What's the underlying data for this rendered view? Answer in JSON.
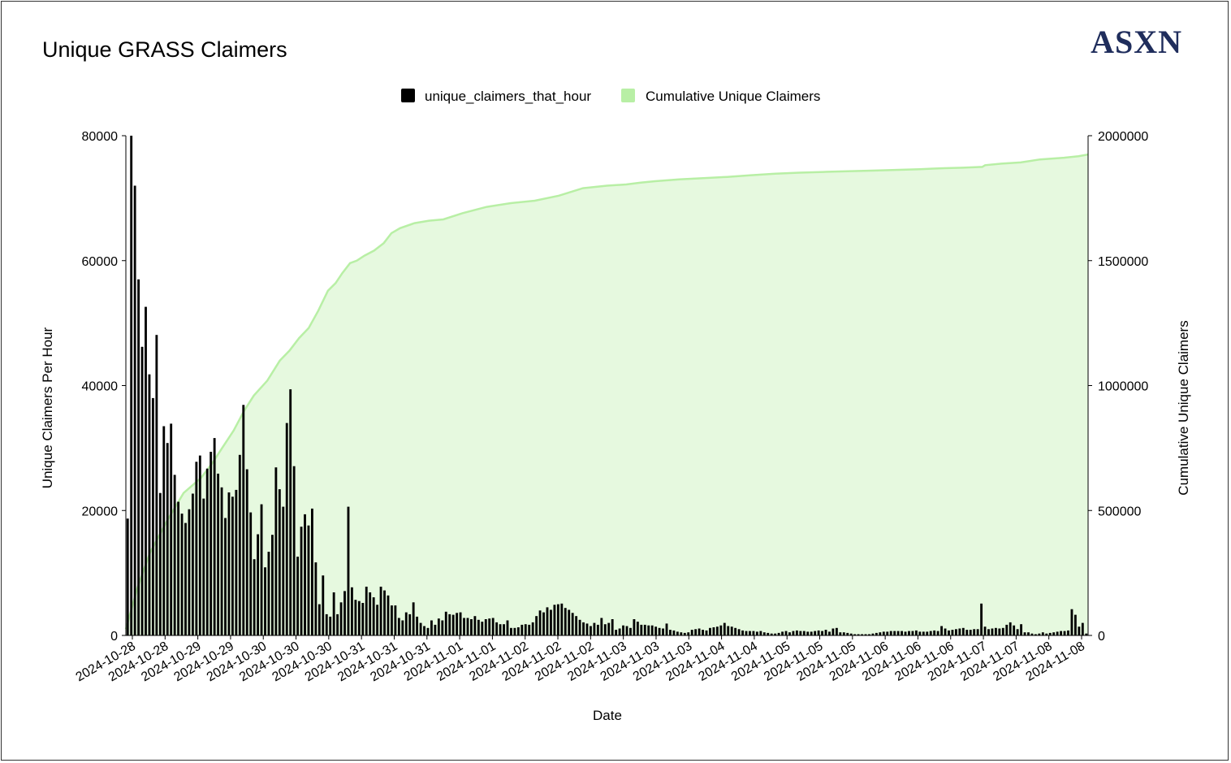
{
  "title": "Unique GRASS Claimers",
  "brand": "ASXN",
  "colors": {
    "bars": "#000000",
    "area_fill": "#e6f9df",
    "area_line": "#b8efa5",
    "legend_green": "#b8efa5"
  },
  "chart_data": {
    "type": "bar",
    "title": "Unique GRASS Claimers",
    "xlabel": "Date",
    "ylabel": "Unique Claimers Per Hour",
    "y2label": "Cumulative Unique Claimers",
    "ylim": [
      0,
      80000
    ],
    "y2lim": [
      0,
      2000000
    ],
    "yticks": [
      "0",
      "20000",
      "40000",
      "60000",
      "80000"
    ],
    "y2ticks": [
      "0",
      "500000",
      "1000000",
      "1500000",
      "2000000"
    ],
    "legend_position": "top-center",
    "grid": false,
    "xticklabels": [
      "2024-10-28",
      "2024-10-28",
      "2024-10-29",
      "2024-10-29",
      "2024-10-30",
      "2024-10-30",
      "2024-10-30",
      "2024-10-31",
      "2024-10-31",
      "2024-10-31",
      "2024-11-01",
      "2024-11-01",
      "2024-11-02",
      "2024-11-02",
      "2024-11-02",
      "2024-11-03",
      "2024-11-03",
      "2024-11-03",
      "2024-11-04",
      "2024-11-04",
      "2024-11-05",
      "2024-11-05",
      "2024-11-05",
      "2024-11-06",
      "2024-11-06",
      "2024-11-06",
      "2024-11-07",
      "2024-11-07",
      "2024-11-08",
      "2024-11-08"
    ],
    "series": [
      {
        "name": "unique_claimers_that_hour",
        "type": "bar",
        "axis": "left",
        "values": [
          18700,
          80000,
          72000,
          57000,
          46200,
          52600,
          41800,
          38000,
          48100,
          22800,
          33500,
          30800,
          33900,
          25700,
          21400,
          19500,
          18000,
          20200,
          22700,
          27800,
          28800,
          21900,
          26700,
          29400,
          31600,
          25900,
          23700,
          18800,
          22900,
          22200,
          23300,
          28900,
          36900,
          26600,
          19700,
          12200,
          16200,
          21000,
          10900,
          13400,
          16100,
          26900,
          23400,
          20600,
          34000,
          39400,
          27100,
          12600,
          17400,
          19400,
          17600,
          20300,
          11700,
          5000,
          9600,
          3400,
          3000,
          6900,
          3400,
          5300,
          7100,
          20600,
          7700,
          5700,
          5500,
          5200,
          7800,
          6900,
          6100,
          4900,
          7800,
          7200,
          6400,
          4800,
          4800,
          2800,
          2400,
          3700,
          3400,
          5300,
          3000,
          2000,
          1500,
          1200,
          2400,
          1700,
          2700,
          2400,
          3800,
          3400,
          3300,
          3600,
          3700,
          2800,
          2800,
          2600,
          3100,
          2500,
          2200,
          2600,
          2700,
          2800,
          2100,
          1800,
          1800,
          2400,
          1200,
          1200,
          1300,
          1700,
          1800,
          1700,
          2100,
          3100,
          4000,
          3700,
          4500,
          4100,
          4900,
          5000,
          5100,
          4400,
          4100,
          3600,
          3100,
          2500,
          2100,
          1900,
          1500,
          2000,
          1700,
          2800,
          1800,
          2000,
          2600,
          900,
          1100,
          1600,
          1500,
          1200,
          2600,
          2200,
          1700,
          1700,
          1600,
          1600,
          1400,
          1200,
          1100,
          1900,
          900,
          800,
          600,
          500,
          400,
          500,
          900,
          1000,
          1100,
          900,
          800,
          1200,
          1300,
          1400,
          1600,
          2000,
          1500,
          1400,
          1200,
          1000,
          800,
          700,
          700,
          700,
          600,
          700,
          500,
          400,
          300,
          300,
          400,
          600,
          700,
          500,
          700,
          800,
          700,
          700,
          600,
          600,
          700,
          800,
          700,
          900,
          600,
          1100,
          1200,
          500,
          500,
          400,
          300,
          200,
          200,
          200,
          200,
          200,
          300,
          400,
          500,
          600,
          600,
          700,
          700,
          700,
          700,
          600,
          700,
          700,
          800,
          600,
          600,
          600,
          700,
          800,
          700,
          1500,
          1100,
          800,
          900,
          1000,
          1100,
          1200,
          900,
          900,
          1000,
          1000,
          5100,
          1400,
          1000,
          1100,
          1200,
          1100,
          1200,
          1700,
          2100,
          1600,
          1000,
          1800,
          500,
          500,
          300,
          200,
          300,
          500,
          300,
          400,
          500,
          600,
          700,
          700,
          800,
          4200,
          3300,
          1400,
          2000,
          300
        ]
      },
      {
        "name": "Cumulative Unique Claimers",
        "type": "area",
        "axis": "right",
        "x_frac": [
          0,
          0.012,
          0.025,
          0.043,
          0.06,
          0.078,
          0.09,
          0.1,
          0.112,
          0.123,
          0.133,
          0.147,
          0.16,
          0.17,
          0.18,
          0.19,
          0.2,
          0.21,
          0.218,
          0.225,
          0.233,
          0.24,
          0.248,
          0.258,
          0.268,
          0.276,
          0.285,
          0.3,
          0.315,
          0.33,
          0.35,
          0.375,
          0.4,
          0.425,
          0.45,
          0.475,
          0.5,
          0.52,
          0.535,
          0.55,
          0.575,
          0.6,
          0.625,
          0.65,
          0.675,
          0.7,
          0.725,
          0.75,
          0.775,
          0.8,
          0.825,
          0.85,
          0.87,
          0.89,
          0.893,
          0.91,
          0.93,
          0.95,
          0.975,
          0.99,
          1.0
        ],
        "values": [
          25000,
          190000,
          330000,
          460000,
          570000,
          630000,
          690000,
          750000,
          820000,
          900000,
          960000,
          1020000,
          1100000,
          1140000,
          1190000,
          1230000,
          1300000,
          1380000,
          1410000,
          1450000,
          1490000,
          1500000,
          1520000,
          1540000,
          1570000,
          1610000,
          1630000,
          1650000,
          1660000,
          1665000,
          1690000,
          1715000,
          1730000,
          1740000,
          1760000,
          1790000,
          1800000,
          1805000,
          1812000,
          1818000,
          1825000,
          1830000,
          1835000,
          1842000,
          1848000,
          1852000,
          1855000,
          1858000,
          1860000,
          1863000,
          1866000,
          1870000,
          1872000,
          1875000,
          1882000,
          1888000,
          1893000,
          1905000,
          1912000,
          1918000,
          1925000
        ]
      }
    ]
  }
}
